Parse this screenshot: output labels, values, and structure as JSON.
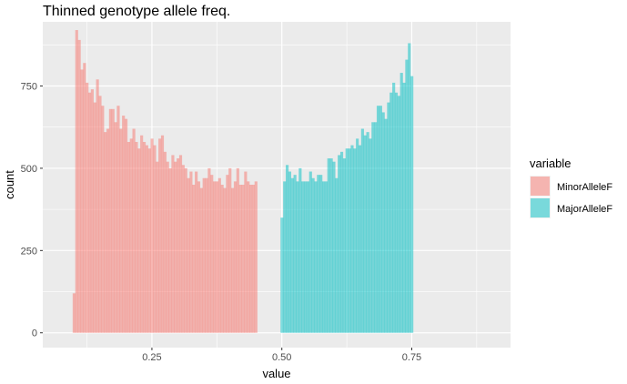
{
  "chart_data": {
    "type": "bar",
    "title": "Thinned genotype allele freq.",
    "xlabel": "value",
    "ylabel": "count",
    "xlim": [
      0.04,
      0.94
    ],
    "ylim": [
      -45,
      945
    ],
    "x_ticks": [
      {
        "value": 0.25,
        "label": "0.25"
      },
      {
        "value": 0.5,
        "label": "0.50"
      },
      {
        "value": 0.75,
        "label": "0.75"
      }
    ],
    "y_ticks": [
      {
        "value": 0,
        "label": "0"
      },
      {
        "value": 250,
        "label": "250"
      },
      {
        "value": 500,
        "label": "500"
      },
      {
        "value": 750,
        "label": "750"
      }
    ],
    "bin_width": 0.005,
    "grid": true,
    "legend": {
      "title": "variable",
      "position": "right"
    },
    "series": [
      {
        "name": "MinorAlleleF",
        "color": "#F8766D",
        "x_start": 0.0975,
        "values": [
          120,
          920,
          890,
          800,
          820,
          760,
          730,
          740,
          700,
          770,
          720,
          690,
          610,
          620,
          680,
          680,
          640,
          690,
          620,
          660,
          650,
          580,
          590,
          620,
          580,
          560,
          600,
          580,
          570,
          560,
          590,
          570,
          520,
          590,
          600,
          550,
          520,
          500,
          540,
          520,
          530,
          540,
          510,
          500,
          470,
          490,
          450,
          490,
          460,
          440,
          470,
          470,
          500,
          480,
          460,
          460,
          470,
          450,
          440,
          480,
          500,
          440,
          460,
          500,
          450,
          450,
          490,
          460,
          450,
          450,
          460
        ]
      },
      {
        "name": "MajorAlleleF",
        "color": "#00BFC4",
        "x_start": 0.4975,
        "values": [
          350,
          460,
          510,
          490,
          470,
          480,
          460,
          500,
          460,
          460,
          460,
          490,
          470,
          460,
          480,
          480,
          460,
          460,
          530,
          530,
          520,
          470,
          540,
          550,
          530,
          560,
          560,
          570,
          560,
          590,
          570,
          620,
          600,
          610,
          590,
          640,
          640,
          690,
          690,
          670,
          650,
          700,
          730,
          760,
          730,
          720,
          790,
          760,
          830,
          880,
          780
        ]
      }
    ]
  }
}
